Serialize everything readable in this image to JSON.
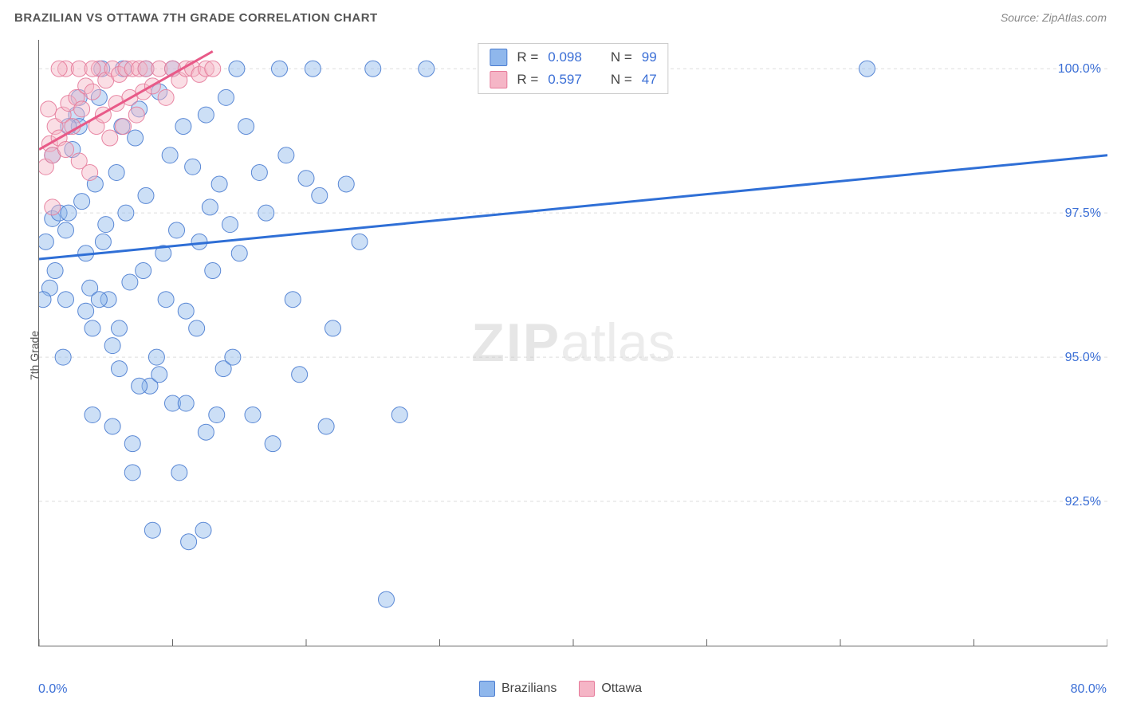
{
  "header": {
    "title": "BRAZILIAN VS OTTAWA 7TH GRADE CORRELATION CHART",
    "source_label": "Source: ZipAtlas.com"
  },
  "watermark": {
    "part1": "ZIP",
    "part2": "atlas"
  },
  "chart": {
    "type": "scatter",
    "ylabel": "7th Grade",
    "background_color": "#ffffff",
    "grid_color": "#dddddd",
    "axis_color": "#666666",
    "xlim": [
      0,
      80
    ],
    "ylim": [
      90,
      100.5
    ],
    "xticks": [
      0,
      10,
      20,
      30,
      40,
      50,
      60,
      70,
      80
    ],
    "yticks": [
      92.5,
      95.0,
      97.5,
      100.0
    ],
    "xlabel_min": "0.0%",
    "xlabel_max": "80.0%",
    "ytick_labels": [
      "92.5%",
      "95.0%",
      "97.5%",
      "100.0%"
    ],
    "marker_radius": 10,
    "marker_opacity": 0.45,
    "marker_stroke_opacity": 0.9,
    "series": [
      {
        "name": "Brazilians",
        "fill_color": "#8fb7ec",
        "stroke_color": "#4a7cd0",
        "trend": {
          "x1": 0,
          "y1": 96.7,
          "x2": 80,
          "y2": 98.5,
          "color": "#2f6fd6",
          "width": 3
        },
        "points": [
          [
            1,
            97.4
          ],
          [
            1.5,
            97.5
          ],
          [
            2,
            97.2
          ],
          [
            2.2,
            97.5
          ],
          [
            2.5,
            98.6
          ],
          [
            2.8,
            99.2
          ],
          [
            3,
            99.0
          ],
          [
            3.2,
            97.7
          ],
          [
            3.5,
            96.8
          ],
          [
            3.8,
            96.2
          ],
          [
            4,
            95.5
          ],
          [
            4.2,
            98.0
          ],
          [
            4.5,
            99.5
          ],
          [
            4.8,
            97.0
          ],
          [
            5,
            97.3
          ],
          [
            5.2,
            96.0
          ],
          [
            5.5,
            95.2
          ],
          [
            5.8,
            98.2
          ],
          [
            6,
            94.8
          ],
          [
            6.2,
            99.0
          ],
          [
            6.5,
            97.5
          ],
          [
            6.8,
            96.3
          ],
          [
            7,
            93.5
          ],
          [
            7.2,
            98.8
          ],
          [
            7.5,
            99.3
          ],
          [
            7.8,
            96.5
          ],
          [
            8,
            97.8
          ],
          [
            8.3,
            94.5
          ],
          [
            8.5,
            92.0
          ],
          [
            8.8,
            95.0
          ],
          [
            9,
            99.6
          ],
          [
            9.3,
            96.8
          ],
          [
            9.5,
            96.0
          ],
          [
            9.8,
            98.5
          ],
          [
            10,
            94.2
          ],
          [
            10.3,
            97.2
          ],
          [
            10.5,
            93.0
          ],
          [
            10.8,
            99.0
          ],
          [
            11,
            95.8
          ],
          [
            11.2,
            91.8
          ],
          [
            11.5,
            98.3
          ],
          [
            11.8,
            95.5
          ],
          [
            12,
            97.0
          ],
          [
            12.3,
            92.0
          ],
          [
            12.5,
            99.2
          ],
          [
            12.8,
            97.6
          ],
          [
            13,
            96.5
          ],
          [
            13.3,
            94.0
          ],
          [
            13.5,
            98.0
          ],
          [
            13.8,
            94.8
          ],
          [
            14,
            99.5
          ],
          [
            14.3,
            97.3
          ],
          [
            14.5,
            95.0
          ],
          [
            15,
            96.8
          ],
          [
            15.5,
            99.0
          ],
          [
            16,
            94.0
          ],
          [
            16.5,
            98.2
          ],
          [
            17,
            97.5
          ],
          [
            17.5,
            93.5
          ],
          [
            18,
            100.0
          ],
          [
            18.5,
            98.5
          ],
          [
            19,
            96.0
          ],
          [
            19.5,
            94.7
          ],
          [
            20,
            98.1
          ],
          [
            20.5,
            100.0
          ],
          [
            21,
            97.8
          ],
          [
            21.5,
            93.8
          ],
          [
            22,
            95.5
          ],
          [
            23,
            98.0
          ],
          [
            24,
            97.0
          ],
          [
            25,
            100.0
          ],
          [
            26,
            90.8
          ],
          [
            27,
            94.0
          ],
          [
            29,
            100.0
          ],
          [
            4.5,
            96.0
          ],
          [
            6.0,
            95.5
          ],
          [
            7.5,
            94.5
          ],
          [
            9.0,
            94.7
          ],
          [
            11.0,
            94.2
          ],
          [
            12.5,
            93.7
          ],
          [
            4.0,
            94.0
          ],
          [
            5.5,
            93.8
          ],
          [
            7.0,
            93.0
          ],
          [
            3.5,
            95.8
          ],
          [
            2.0,
            96.0
          ],
          [
            1.8,
            95.0
          ],
          [
            0.8,
            96.2
          ],
          [
            1.2,
            96.5
          ],
          [
            0.5,
            97.0
          ],
          [
            0.3,
            96.0
          ],
          [
            1.0,
            98.5
          ],
          [
            2.2,
            99.0
          ],
          [
            3.0,
            99.5
          ],
          [
            4.7,
            100.0
          ],
          [
            6.3,
            100.0
          ],
          [
            8.0,
            100.0
          ],
          [
            10.0,
            100.0
          ],
          [
            14.8,
            100.0
          ],
          [
            62,
            100.0
          ]
        ]
      },
      {
        "name": "Ottawa",
        "fill_color": "#f5b5c6",
        "stroke_color": "#e67a9a",
        "trend": {
          "x1": 0,
          "y1": 98.6,
          "x2": 13,
          "y2": 100.3,
          "color": "#e85a88",
          "width": 3
        },
        "points": [
          [
            0.5,
            98.3
          ],
          [
            0.8,
            98.7
          ],
          [
            1.0,
            98.5
          ],
          [
            1.2,
            99.0
          ],
          [
            1.5,
            98.8
          ],
          [
            1.8,
            99.2
          ],
          [
            2.0,
            98.6
          ],
          [
            2.2,
            99.4
          ],
          [
            2.5,
            99.0
          ],
          [
            2.8,
            99.5
          ],
          [
            3.0,
            98.4
          ],
          [
            3.2,
            99.3
          ],
          [
            3.5,
            99.7
          ],
          [
            3.8,
            98.2
          ],
          [
            4.0,
            99.6
          ],
          [
            4.3,
            99.0
          ],
          [
            4.5,
            100.0
          ],
          [
            4.8,
            99.2
          ],
          [
            5.0,
            99.8
          ],
          [
            5.3,
            98.8
          ],
          [
            5.5,
            100.0
          ],
          [
            5.8,
            99.4
          ],
          [
            6.0,
            99.9
          ],
          [
            6.3,
            99.0
          ],
          [
            6.5,
            100.0
          ],
          [
            6.8,
            99.5
          ],
          [
            7.0,
            100.0
          ],
          [
            7.3,
            99.2
          ],
          [
            7.5,
            100.0
          ],
          [
            7.8,
            99.6
          ],
          [
            8.0,
            100.0
          ],
          [
            8.5,
            99.7
          ],
          [
            9.0,
            100.0
          ],
          [
            9.5,
            99.5
          ],
          [
            10.0,
            100.0
          ],
          [
            10.5,
            99.8
          ],
          [
            11.0,
            100.0
          ],
          [
            11.5,
            100.0
          ],
          [
            12.0,
            99.9
          ],
          [
            12.5,
            100.0
          ],
          [
            13.0,
            100.0
          ],
          [
            2.0,
            100.0
          ],
          [
            3.0,
            100.0
          ],
          [
            4.0,
            100.0
          ],
          [
            1.5,
            100.0
          ],
          [
            0.7,
            99.3
          ],
          [
            1.0,
            97.6
          ]
        ]
      }
    ],
    "stats": [
      {
        "swatch": "#8fb7ec",
        "stroke": "#4a7cd0",
        "r": "0.098",
        "n": "99"
      },
      {
        "swatch": "#f5b5c6",
        "stroke": "#e67a9a",
        "r": "0.597",
        "n": "47"
      }
    ],
    "legend_bottom": [
      {
        "swatch": "#8fb7ec",
        "stroke": "#4a7cd0",
        "label": "Brazilians"
      },
      {
        "swatch": "#f5b5c6",
        "stroke": "#e67a9a",
        "label": "Ottawa"
      }
    ],
    "stat_labels": {
      "r": "R =",
      "n": "N ="
    }
  }
}
